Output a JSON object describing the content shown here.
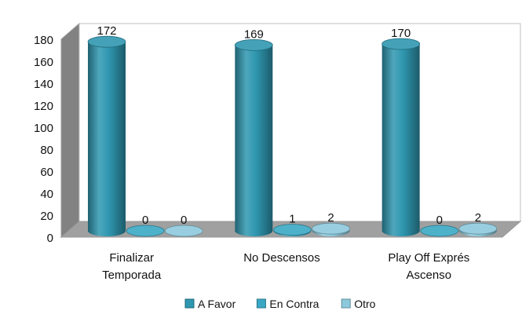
{
  "chart_data": {
    "type": "bar",
    "categories": [
      "Finalizar Temporada",
      "No Descensos",
      "Play Off Exprés Ascenso"
    ],
    "series": [
      {
        "name": "A Favor",
        "values": [
          172,
          169,
          170
        ],
        "color": "#2f97b0"
      },
      {
        "name": "En Contra",
        "values": [
          0,
          1,
          0
        ],
        "color": "#3aa8c4"
      },
      {
        "name": "Otro",
        "values": [
          0,
          2,
          2
        ],
        "color": "#8cc9dc"
      }
    ],
    "yticks": [
      "0",
      "20",
      "40",
      "60",
      "80",
      "100",
      "120",
      "140",
      "160",
      "180"
    ],
    "ylim": [
      0,
      180
    ],
    "grid": false,
    "legend_position": "bottom",
    "style": "3d-cylinder",
    "wall_color": "#c8c8c8"
  }
}
